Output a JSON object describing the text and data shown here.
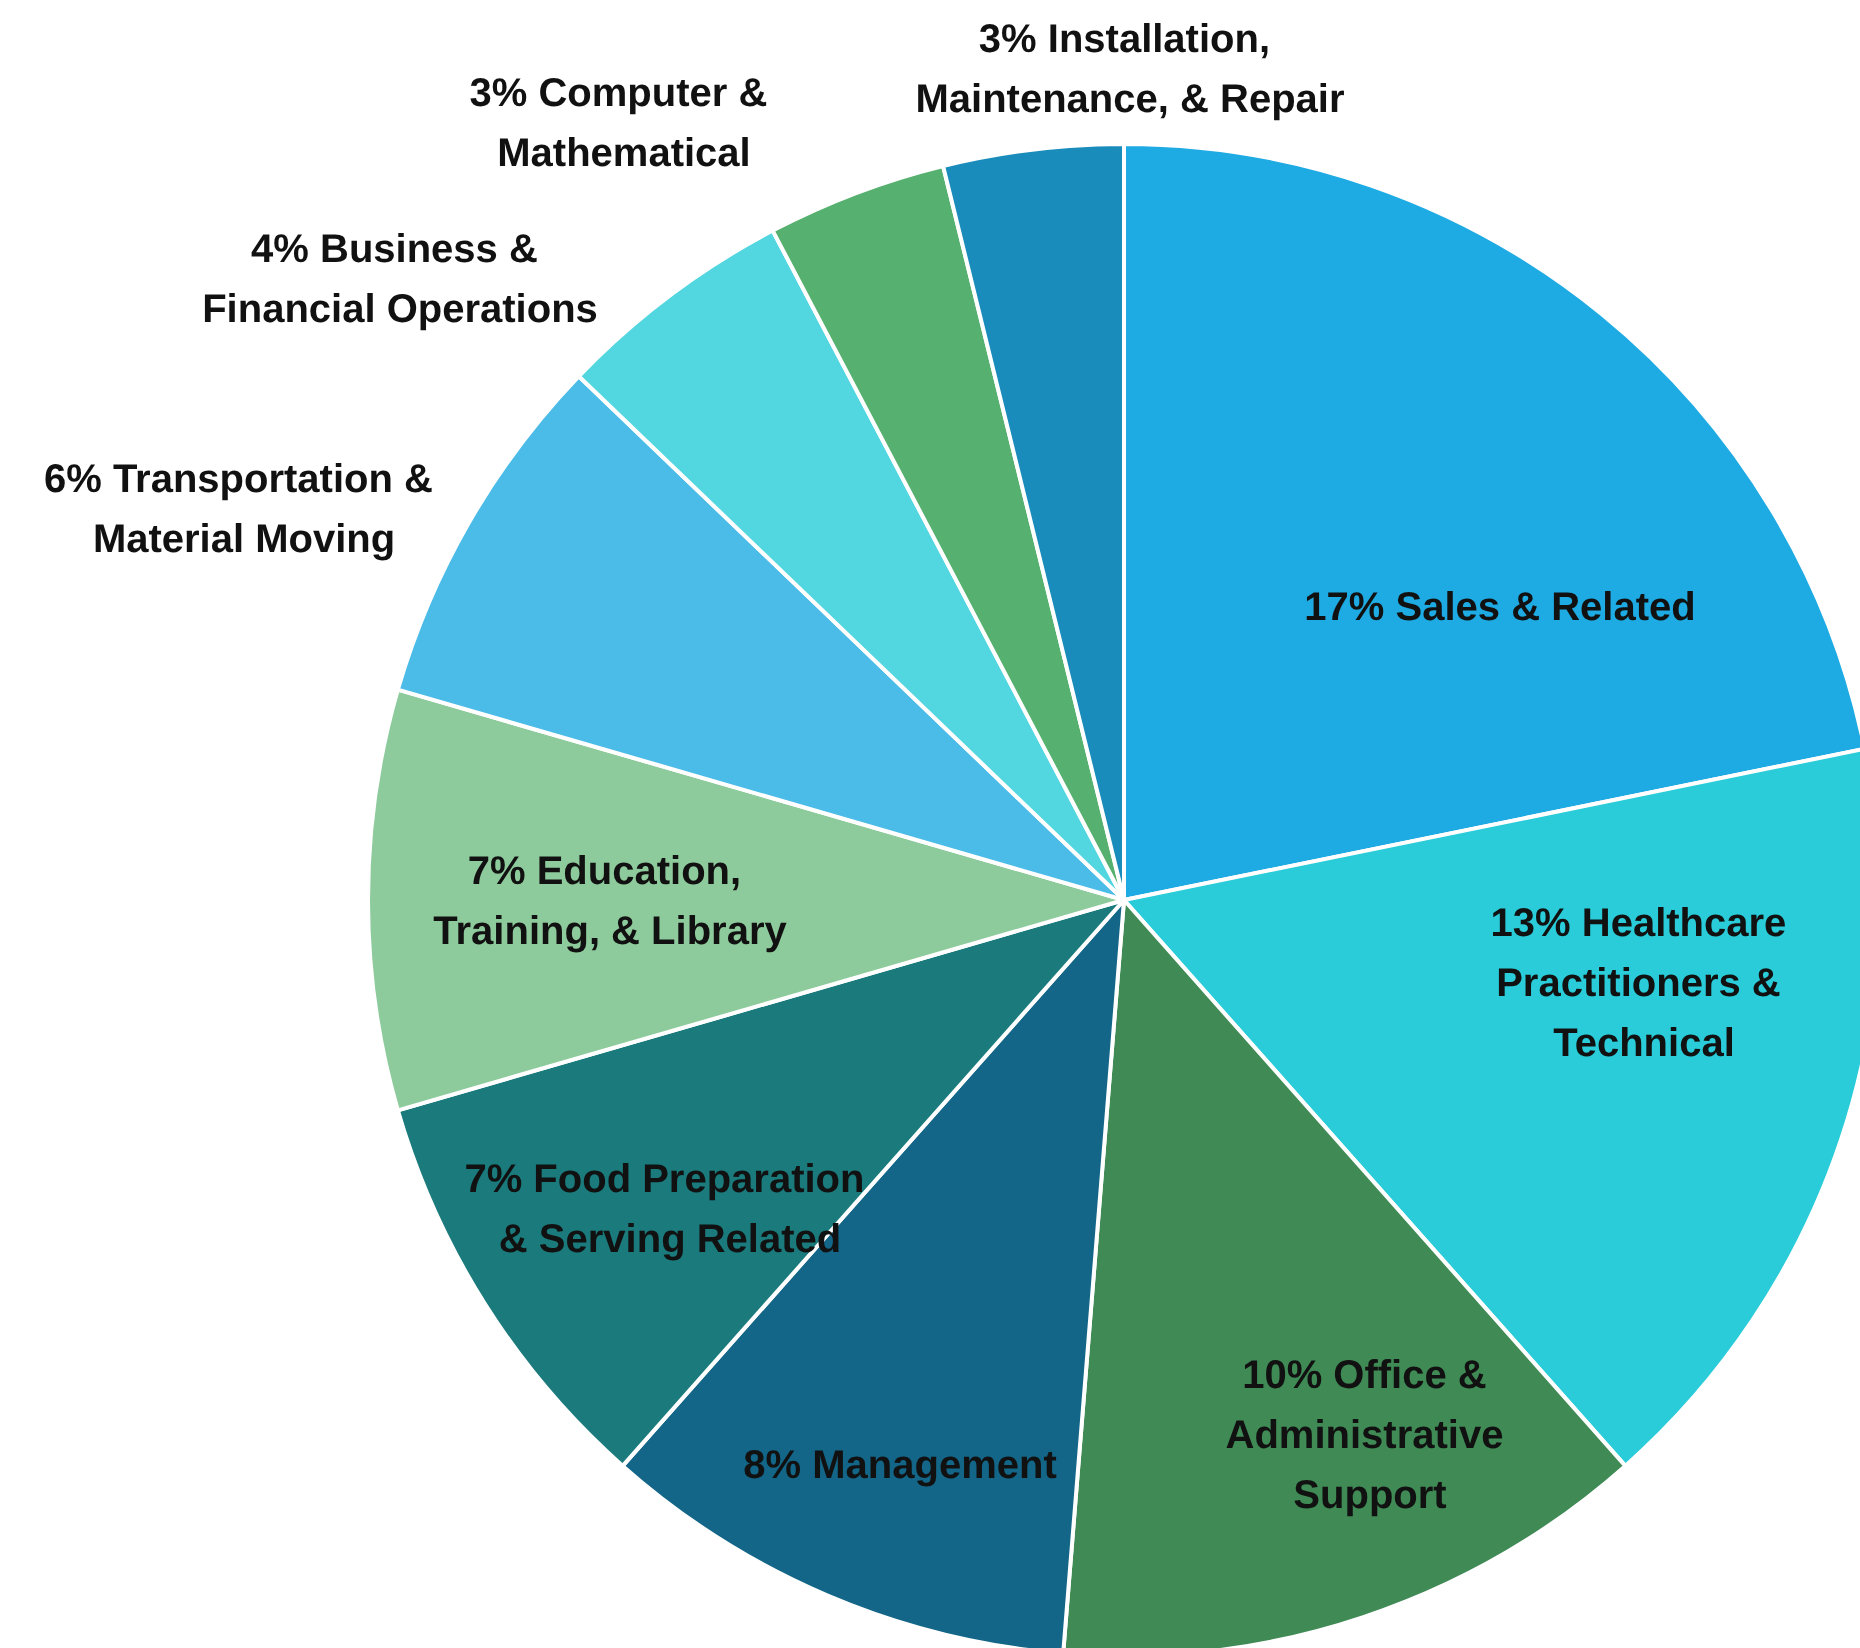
{
  "chart_data": {
    "type": "pie",
    "categories": [
      "Sales & Related",
      "Healthcare Practitioners & Technical",
      "Office & Administrative Support",
      "Management",
      "Food Preparation & Serving Related",
      "Education, Training, & Library",
      "Transportation & Material Moving",
      "Business & Financial Operations",
      "Computer & Mathematical",
      "Installation, Maintenance, & Repair"
    ],
    "values": [
      17,
      13,
      10,
      8,
      7,
      7,
      6,
      4,
      3,
      3
    ],
    "value_labels": [
      "17%",
      "13%",
      "10%",
      "8%",
      "7%",
      "7%",
      "6%",
      "4%",
      "3%",
      "3%"
    ],
    "colors": [
      "#1eaae2",
      "#29ccd8",
      "#3f8a55",
      "#136688",
      "#1a7a7c",
      "#8ecb9c",
      "#4bbbe8",
      "#52d6e0",
      "#56b06f",
      "#1a8cbb"
    ],
    "legend": false
  }
}
